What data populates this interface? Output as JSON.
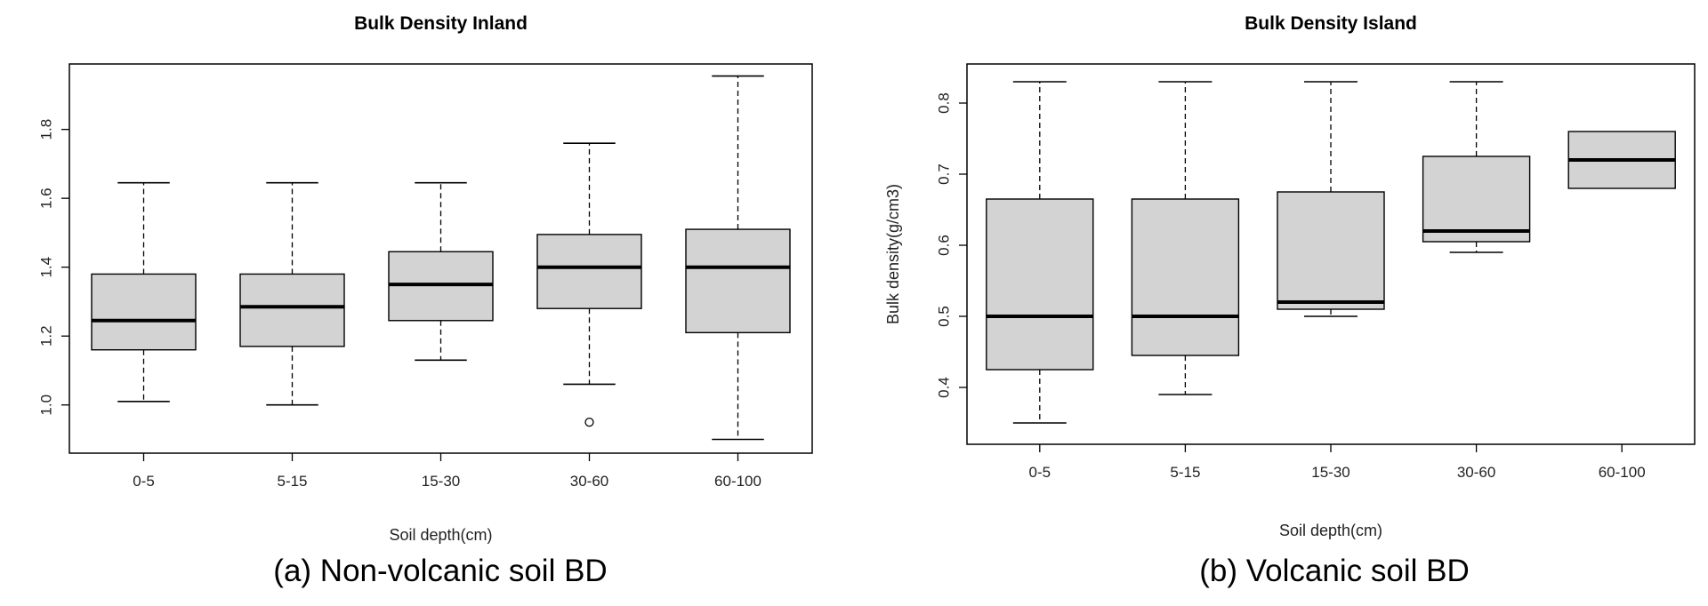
{
  "chart_data": [
    {
      "type": "boxplot",
      "title": "Bulk Density Inland",
      "xlabel": "Soil depth(cm)",
      "ylabel": "",
      "caption": "(a) Non-volcanic soil BD",
      "categories": [
        "0-5",
        "5-15",
        "15-30",
        "30-60",
        "60-100"
      ],
      "ylim": [
        0.86,
        1.99
      ],
      "yticks": [
        "1.0",
        "1.2",
        "1.4",
        "1.6",
        "1.8"
      ],
      "boxes": [
        {
          "category": "0-5",
          "min": 1.01,
          "q1": 1.16,
          "median": 1.245,
          "q3": 1.38,
          "max": 1.645,
          "outliers": []
        },
        {
          "category": "5-15",
          "min": 1.0,
          "q1": 1.17,
          "median": 1.285,
          "q3": 1.38,
          "max": 1.645,
          "outliers": []
        },
        {
          "category": "15-30",
          "min": 1.13,
          "q1": 1.245,
          "median": 1.35,
          "q3": 1.445,
          "max": 1.645,
          "outliers": []
        },
        {
          "category": "30-60",
          "min": 1.06,
          "q1": 1.28,
          "median": 1.4,
          "q3": 1.495,
          "max": 1.76,
          "outliers": [
            0.95
          ]
        },
        {
          "category": "60-100",
          "min": 0.9,
          "q1": 1.21,
          "median": 1.4,
          "q3": 1.51,
          "max": 1.955,
          "outliers": []
        }
      ]
    },
    {
      "type": "boxplot",
      "title": "Bulk Density Island",
      "xlabel": "Soil depth(cm)",
      "ylabel": "Bulk density(g/cm3)",
      "caption": "(b) Volcanic soil BD",
      "categories": [
        "0-5",
        "5-15",
        "15-30",
        "30-60",
        "60-100"
      ],
      "ylim": [
        0.32,
        0.855
      ],
      "yticks": [
        "0.4",
        "0.5",
        "0.6",
        "0.7",
        "0.8"
      ],
      "boxes": [
        {
          "category": "0-5",
          "min": 0.35,
          "q1": 0.425,
          "median": 0.5,
          "q3": 0.665,
          "max": 0.83,
          "outliers": []
        },
        {
          "category": "5-15",
          "min": 0.39,
          "q1": 0.445,
          "median": 0.5,
          "q3": 0.665,
          "max": 0.83,
          "outliers": []
        },
        {
          "category": "15-30",
          "min": 0.5,
          "q1": 0.51,
          "median": 0.52,
          "q3": 0.675,
          "max": 0.83,
          "outliers": []
        },
        {
          "category": "30-60",
          "min": 0.59,
          "q1": 0.605,
          "median": 0.62,
          "q3": 0.725,
          "max": 0.83,
          "outliers": []
        },
        {
          "category": "60-100",
          "min": null,
          "q1": 0.68,
          "median": 0.72,
          "q3": 0.76,
          "max": null,
          "outliers": []
        }
      ]
    }
  ],
  "style": {
    "box_fill": "#d3d3d3",
    "line_color": "#000000"
  }
}
